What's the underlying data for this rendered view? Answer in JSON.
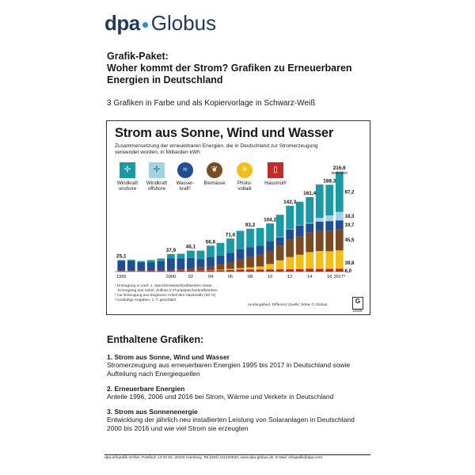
{
  "logo": {
    "left": "dpa",
    "right": "Globus"
  },
  "intro": {
    "package": "Grafik-Paket:",
    "headline_1": "Woher kommt der Strom? Grafiken zu Erneuerbaren",
    "headline_2": "Energien in Deutschland",
    "note": "3 Grafiken in Farbe und als Kopiervorlage in Schwarz-Weiß"
  },
  "graphic": {
    "title": "Strom aus Sonne, Wind und Wasser",
    "subtitle_1": "Zusammensetzung der erneuerbaren Energien, die in Deutschland zur Stromerzeugung",
    "subtitle_2": "verwendet worden, in Milliarden kWh",
    "legend": [
      {
        "label_1": "Windkraft",
        "label_2": "onshore",
        "color": "#1a9aa5",
        "icon": "wind-turbine-icon"
      },
      {
        "label_1": "Windkraft",
        "label_2": "offshore",
        "color": "#a3d2e4",
        "icon": "offshore-turbine-icon"
      },
      {
        "label_1": "Wasser-",
        "label_2": "kraft¹",
        "color": "#1f4e95",
        "icon": "water-wave-icon"
      },
      {
        "label_1": "Biomasse",
        "label_2": "",
        "color": "#7a4a23",
        "icon": "leaf-icon"
      },
      {
        "label_1": "Photo-",
        "label_2": "voltaik",
        "color": "#f2bf1a",
        "icon": "sun-icon"
      },
      {
        "label_1": "Hausmüll²",
        "label_2": "",
        "color": "#c42a2a",
        "icon": "trash-can-icon"
      }
    ],
    "footnote_1": "¹ Erzeugung in Lauf- u. Speicherwasserkraftwerken sowie",
    "footnote_1b": "Erzeugung aus natürl. Zufluss in Pumpspeicherkraftwerken",
    "footnote_2": "² nur Erzeugung aus biogenem Anteil des Hausmülls (50 %)",
    "footnote_3": "³ vorläufige Angaben, z. T. geschätzt",
    "credit": "rundungsbed. Differenz   Quelle: bdew   © Globus",
    "logo_letter": "G",
    "number": "12226"
  },
  "chart_data": {
    "type": "bar",
    "stacked": true,
    "unit": "Mrd. kWh",
    "x": [
      1995,
      1996,
      1997,
      1998,
      1999,
      2000,
      2001,
      2002,
      2003,
      2004,
      2005,
      2006,
      2007,
      2008,
      2009,
      2010,
      2011,
      2012,
      2013,
      2014,
      2015,
      2016,
      2017
    ],
    "tick_labels": [
      "1995",
      "2000",
      "02",
      "04",
      "06",
      "08",
      "10",
      "12",
      "14",
      "16",
      "2017³"
    ],
    "tick_positions": [
      1995,
      2000,
      2002,
      2004,
      2006,
      2008,
      2010,
      2012,
      2014,
      2016,
      2017
    ],
    "totals_labeled": [
      {
        "x": 1995,
        "label": "25,1"
      },
      {
        "x": 2000,
        "label": "37,9"
      },
      {
        "x": 2002,
        "label": "46,1"
      },
      {
        "x": 2004,
        "label": "56,6"
      },
      {
        "x": 2006,
        "label": "71,6"
      },
      {
        "x": 2008,
        "label": "93,2"
      },
      {
        "x": 2010,
        "label": "104,2"
      },
      {
        "x": 2012,
        "label": "142,3"
      },
      {
        "x": 2014,
        "label": "161,4"
      },
      {
        "x": 2016,
        "label": "188,3"
      },
      {
        "x": 2017,
        "label": "216,6"
      }
    ],
    "top_unit_label": "Mrd. kWh",
    "series": [
      {
        "name": "Hausmüll²",
        "values": [
          1.3,
          1.3,
          1.4,
          1.8,
          1.7,
          1.8,
          1.9,
          1.9,
          2.2,
          2.1,
          3.0,
          3.7,
          4.5,
          4.7,
          4.3,
          4.7,
          4.8,
          5.0,
          5.4,
          6.1,
          5.8,
          5.9,
          6.0
        ]
      },
      {
        "name": "Photo-voltaik",
        "values": [
          0.0,
          0.0,
          0.0,
          0.0,
          0.0,
          0.1,
          0.2,
          0.2,
          0.3,
          0.6,
          1.3,
          2.2,
          3.1,
          4.4,
          6.6,
          11.7,
          19.6,
          26.4,
          31.0,
          36.1,
          38.7,
          38.1,
          39.8
        ]
      },
      {
        "name": "Biomasse",
        "values": [
          0.7,
          0.7,
          0.9,
          1.5,
          1.5,
          1.6,
          2.7,
          3.7,
          6.4,
          8.3,
          11.0,
          14.7,
          19.8,
          22.8,
          25.8,
          29.1,
          32.1,
          38.3,
          40.1,
          42.2,
          44.6,
          45.0,
          45.5
        ]
      },
      {
        "name": "Wasser-kraft¹",
        "values": [
          21.6,
          21.6,
          17.4,
          17.2,
          19.6,
          24.9,
          23.4,
          23.7,
          17.7,
          19.9,
          19.6,
          20.0,
          21.2,
          20.4,
          19.0,
          21.0,
          17.7,
          21.8,
          23.0,
          19.6,
          19.0,
          20.5,
          19.7
        ]
      },
      {
        "name": "Windkraft offshore",
        "values": [
          0.0,
          0.0,
          0.0,
          0.0,
          0.0,
          0.0,
          0.0,
          0.0,
          0.0,
          0.0,
          0.0,
          0.0,
          0.0,
          0.0,
          0.0,
          0.2,
          0.6,
          0.7,
          0.9,
          1.5,
          8.3,
          12.3,
          18.3
        ]
      },
      {
        "name": "Windkraft onshore",
        "values": [
          1.5,
          2.0,
          3.0,
          4.6,
          5.5,
          9.5,
          10.5,
          15.8,
          18.7,
          25.1,
          27.2,
          31.0,
          39.7,
          40.6,
          38.6,
          37.5,
          48.3,
          50.1,
          51.0,
          55.9,
          72.3,
          66.3,
          87.2
        ]
      }
    ],
    "end_labels_2017": [
      {
        "series": "Windkraft onshore",
        "label": "87,2"
      },
      {
        "series": "Windkraft offshore",
        "label": "18,3"
      },
      {
        "series": "Wasser-kraft¹",
        "label": "19,7"
      },
      {
        "series": "Biomasse",
        "label": "45,5"
      },
      {
        "series": "Photo-voltaik",
        "label": "39,8"
      },
      {
        "series": "Hausmüll²",
        "label": "6,0"
      }
    ],
    "ylim": [
      0,
      230
    ],
    "grid": false,
    "legend_position": "top-left"
  },
  "included": {
    "title": "Enthaltene Grafiken:",
    "items": [
      {
        "title": "1. Strom aus Sonne, Wind und Wasser",
        "desc_1": "Stromerzeugung aus erneuerbaren Energien 1995 bis 2017 in Deutschland sowie",
        "desc_2": "Aufteilung nach Energiequellen"
      },
      {
        "title": "2. Erneuerbare Energien",
        "desc_1": "Anteile 1996, 2006 und 2016 bei Strom, Wärme und Verkehr in Deutschland",
        "desc_2": ""
      },
      {
        "title": "3. Strom aus Sonnenenergie",
        "desc_1": "Entwicklung der jährlich neu installierten Leistung von Solaranlagen in Deutschland",
        "desc_2": "2000 bis 2016 und wie viel Strom sie erzeugten"
      }
    ]
  },
  "footer": "dpa-infografik GmbH, Postfach 13 03 93, 20103 Hamburg, Tel.(040) 411332840, www.dpa-globus.de, E-Mail: infografik@dpa.com"
}
